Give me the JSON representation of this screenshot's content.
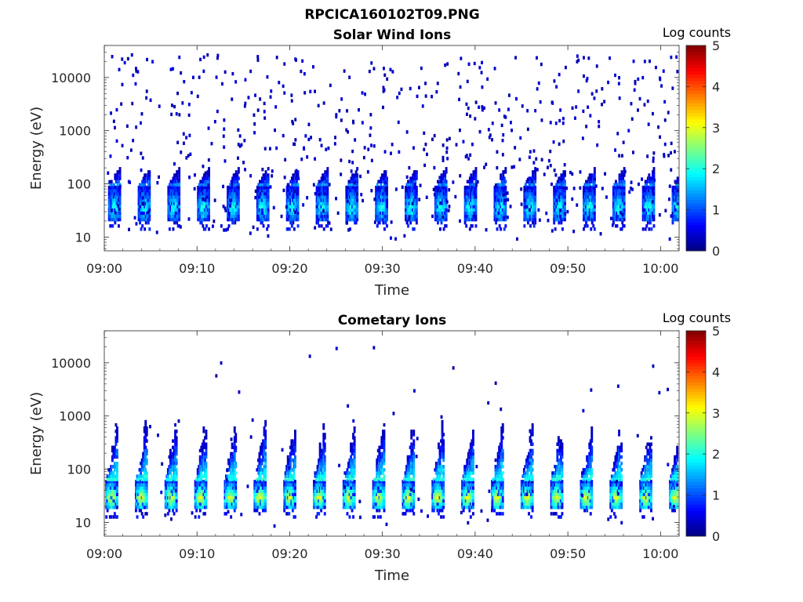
{
  "figure_title": "RPCICA160102T09.PNG",
  "chart_data": [
    {
      "type": "heatmap",
      "title": "Solar Wind Ions",
      "xlabel": "Time",
      "ylabel": "Energy (eV)",
      "xlim": [
        "09:00",
        "10:02"
      ],
      "xticks": [
        "09:00",
        "09:10",
        "09:20",
        "09:30",
        "09:40",
        "09:50",
        "10:00"
      ],
      "y_scale": "log",
      "ylim": [
        5.5,
        40000
      ],
      "yticks": [
        {
          "v": 10,
          "label": "10"
        },
        {
          "v": 100,
          "label": "100"
        },
        {
          "v": 1000,
          "label": "1000"
        },
        {
          "v": 10000,
          "label": "10000"
        }
      ],
      "colorbar": {
        "label": "Log counts",
        "min": 0,
        "max": 5,
        "ticks": [
          "0",
          "1",
          "2",
          "3",
          "4",
          "5"
        ],
        "colormap": "jet"
      },
      "sweep_period_min": 3.2,
      "sweep_start_min": 0.4,
      "core_energy_ev": [
        20,
        90
      ],
      "core_peak_log_counts": 2.0,
      "background_log_counts": 0.3,
      "background_energy_ev": [
        8,
        25000
      ]
    },
    {
      "type": "heatmap",
      "title": "Cometary Ions",
      "xlabel": "Time",
      "ylabel": "Energy (eV)",
      "xlim": [
        "09:00",
        "10:02"
      ],
      "xticks": [
        "09:00",
        "09:10",
        "09:20",
        "09:30",
        "09:40",
        "09:50",
        "10:00"
      ],
      "y_scale": "log",
      "ylim": [
        5.5,
        40000
      ],
      "yticks": [
        {
          "v": 10,
          "label": "10"
        },
        {
          "v": 100,
          "label": "100"
        },
        {
          "v": 1000,
          "label": "1000"
        },
        {
          "v": 10000,
          "label": "10000"
        }
      ],
      "colorbar": {
        "label": "Log counts",
        "min": 0,
        "max": 5,
        "ticks": [
          "0",
          "1",
          "2",
          "3",
          "4",
          "5"
        ],
        "colormap": "jet"
      },
      "sweep_period_min": 3.2,
      "sweep_start_min": 0.1,
      "core_energy_ev": [
        18,
        60
      ],
      "core_peak_log_counts": 3.0,
      "tail_max_energy_ev": [
        350,
        1500
      ],
      "background_log_counts": 0.3,
      "background_energy_ev": [
        8,
        20000
      ]
    }
  ]
}
